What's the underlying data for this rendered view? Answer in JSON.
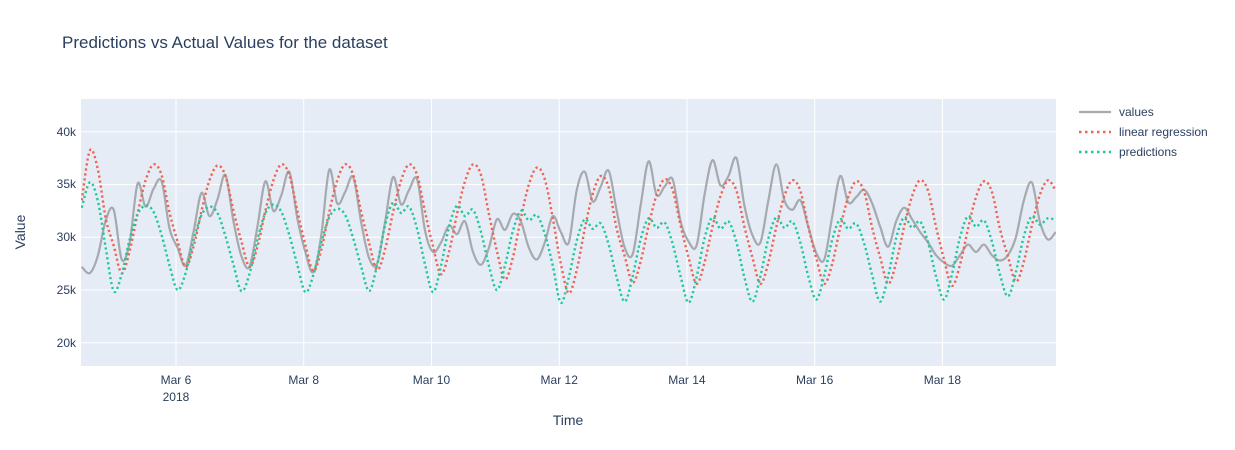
{
  "title": "Predictions vs Actual Values for the dataset",
  "colors": {
    "plot_background": "#e5ecf6",
    "grid": "#ffffff",
    "text": "#2a3f5f",
    "series_values": "#a6a9ad",
    "series_linear_regression": "#ee6352",
    "series_predictions": "#1ec89b"
  },
  "chart_data": {
    "type": "line",
    "title": "Predictions vs Actual Values for the dataset",
    "xlabel": "Time",
    "ylabel": "Value",
    "x_unit": "day of March 2018",
    "y_unit": "thousands",
    "x_start": 4.525,
    "x_step": 0.125,
    "xlim": [
      4.513,
      19.778
    ],
    "ylim": [
      17.8,
      43.1
    ],
    "grid": true,
    "legend_position": "right",
    "x_ticks": [
      {
        "v": 6,
        "label": "Mar 6",
        "sub": "2018"
      },
      {
        "v": 8,
        "label": "Mar 8"
      },
      {
        "v": 10,
        "label": "Mar 10"
      },
      {
        "v": 12,
        "label": "Mar 12"
      },
      {
        "v": 14,
        "label": "Mar 14"
      },
      {
        "v": 16,
        "label": "Mar 16"
      },
      {
        "v": 18,
        "label": "Mar 18"
      }
    ],
    "y_ticks": [
      {
        "v": 20,
        "label": "20k"
      },
      {
        "v": 25,
        "label": "25k"
      },
      {
        "v": 30,
        "label": "30k"
      },
      {
        "v": 35,
        "label": "35k"
      },
      {
        "v": 40,
        "label": "40k"
      }
    ],
    "series": [
      {
        "name": "values",
        "color": "#a6a9ad",
        "dash": "solid",
        "values": [
          27.2,
          26.6,
          28.2,
          31.6,
          32.6,
          27.9,
          29.5,
          35.1,
          32.9,
          34.6,
          35.3,
          30.8,
          29.0,
          27.3,
          30.5,
          34.2,
          32.0,
          33.6,
          35.9,
          31.5,
          28.2,
          27.2,
          31.0,
          35.3,
          32.5,
          34.0,
          36.2,
          31.8,
          28.6,
          26.7,
          30.2,
          36.4,
          33.2,
          34.3,
          35.7,
          31.4,
          28.0,
          27.5,
          31.5,
          35.7,
          33.1,
          34.5,
          35.5,
          30.6,
          28.6,
          29.5,
          31.1,
          30.3,
          31.5,
          28.6,
          27.4,
          29.0,
          31.7,
          30.7,
          32.2,
          31.5,
          29.0,
          27.9,
          29.5,
          32.0,
          30.5,
          29.5,
          34.5,
          36.2,
          33.4,
          34.8,
          36.3,
          32.5,
          29.0,
          28.4,
          33.0,
          37.2,
          34.0,
          34.8,
          35.5,
          31.5,
          29.6,
          29.2,
          34.0,
          37.3,
          34.9,
          35.8,
          37.5,
          33.0,
          30.2,
          29.5,
          33.5,
          36.9,
          33.5,
          32.6,
          33.5,
          31.0,
          28.5,
          27.9,
          32.0,
          35.8,
          33.3,
          33.8,
          34.5,
          33.2,
          31.0,
          29.1,
          31.5,
          32.8,
          31.7,
          30.5,
          29.5,
          28.3,
          27.6,
          27.3,
          28.3,
          29.3,
          28.6,
          29.3,
          28.3,
          27.8,
          28.3,
          30.0,
          33.5,
          35.2,
          31.5,
          29.8,
          30.5
        ]
      },
      {
        "name": "linear regression",
        "color": "#ee6352",
        "dash": "dot",
        "values": [
          33.5,
          38.2,
          36.5,
          31.8,
          29.2,
          26.6,
          28.7,
          32.3,
          35.4,
          36.9,
          35.9,
          32.3,
          29.6,
          27.2,
          29.1,
          32.5,
          35.4,
          36.8,
          35.8,
          32.5,
          29.6,
          27.2,
          29.1,
          32.5,
          35.4,
          36.9,
          35.9,
          32.5,
          29.3,
          26.8,
          28.8,
          32.4,
          35.4,
          36.9,
          35.9,
          32.4,
          29.4,
          26.9,
          28.9,
          32.4,
          35.4,
          36.9,
          35.9,
          32.4,
          29.1,
          26.5,
          28.6,
          32.2,
          35.3,
          36.9,
          35.9,
          32.2,
          28.7,
          26.0,
          28.1,
          31.8,
          35.0,
          36.6,
          35.5,
          31.8,
          27.5,
          24.7,
          26.9,
          30.8,
          34.1,
          35.8,
          34.7,
          30.8,
          28.2,
          25.7,
          27.7,
          31.1,
          34.0,
          35.5,
          34.5,
          31.1,
          28.1,
          25.6,
          27.6,
          31.0,
          33.9,
          35.4,
          34.4,
          31.0,
          28.1,
          25.6,
          27.6,
          31.0,
          33.9,
          35.4,
          34.4,
          31.0,
          28.0,
          25.6,
          27.5,
          30.9,
          33.8,
          35.3,
          34.3,
          30.9,
          28.1,
          25.6,
          27.6,
          31.0,
          33.9,
          35.4,
          34.4,
          31.0,
          27.9,
          25.4,
          27.4,
          30.8,
          33.8,
          35.3,
          34.3,
          30.8,
          28.2,
          25.8,
          27.7,
          31.1,
          34.0,
          35.4,
          34.4
        ]
      },
      {
        "name": "predictions",
        "color": "#1ec89b",
        "dash": "dot",
        "values": [
          32.8,
          35.2,
          33.5,
          29.0,
          24.9,
          26.5,
          29.8,
          32.2,
          33.0,
          32.4,
          30.2,
          27.3,
          25.0,
          26.6,
          29.7,
          32.1,
          32.9,
          32.3,
          30.1,
          27.4,
          24.9,
          26.5,
          29.8,
          32.3,
          33.1,
          32.4,
          30.2,
          27.4,
          24.8,
          26.4,
          29.5,
          31.9,
          32.7,
          32.1,
          29.9,
          27.2,
          24.9,
          27.4,
          31.2,
          33.3,
          32.3,
          32.9,
          30.8,
          27.4,
          24.8,
          27.3,
          31.0,
          33.0,
          32.0,
          32.6,
          30.5,
          27.3,
          25.0,
          27.3,
          30.6,
          32.5,
          31.6,
          32.1,
          30.3,
          27.3,
          23.8,
          26.2,
          29.7,
          31.7,
          30.8,
          31.3,
          29.3,
          26.2,
          23.9,
          26.3,
          29.8,
          31.8,
          30.9,
          31.4,
          29.4,
          26.3,
          23.8,
          26.2,
          29.9,
          31.9,
          30.8,
          31.5,
          29.5,
          26.2,
          23.9,
          26.3,
          29.9,
          31.9,
          30.9,
          31.5,
          29.5,
          26.3,
          24.1,
          26.4,
          29.8,
          31.7,
          30.8,
          31.3,
          29.4,
          26.4,
          23.9,
          26.3,
          29.9,
          31.9,
          30.9,
          31.5,
          29.5,
          26.3,
          24.1,
          26.5,
          30.0,
          32.0,
          31.0,
          31.6,
          29.6,
          26.5,
          24.4,
          26.7,
          30.1,
          32.0,
          31.2,
          31.8,
          31.6
        ]
      }
    ]
  }
}
